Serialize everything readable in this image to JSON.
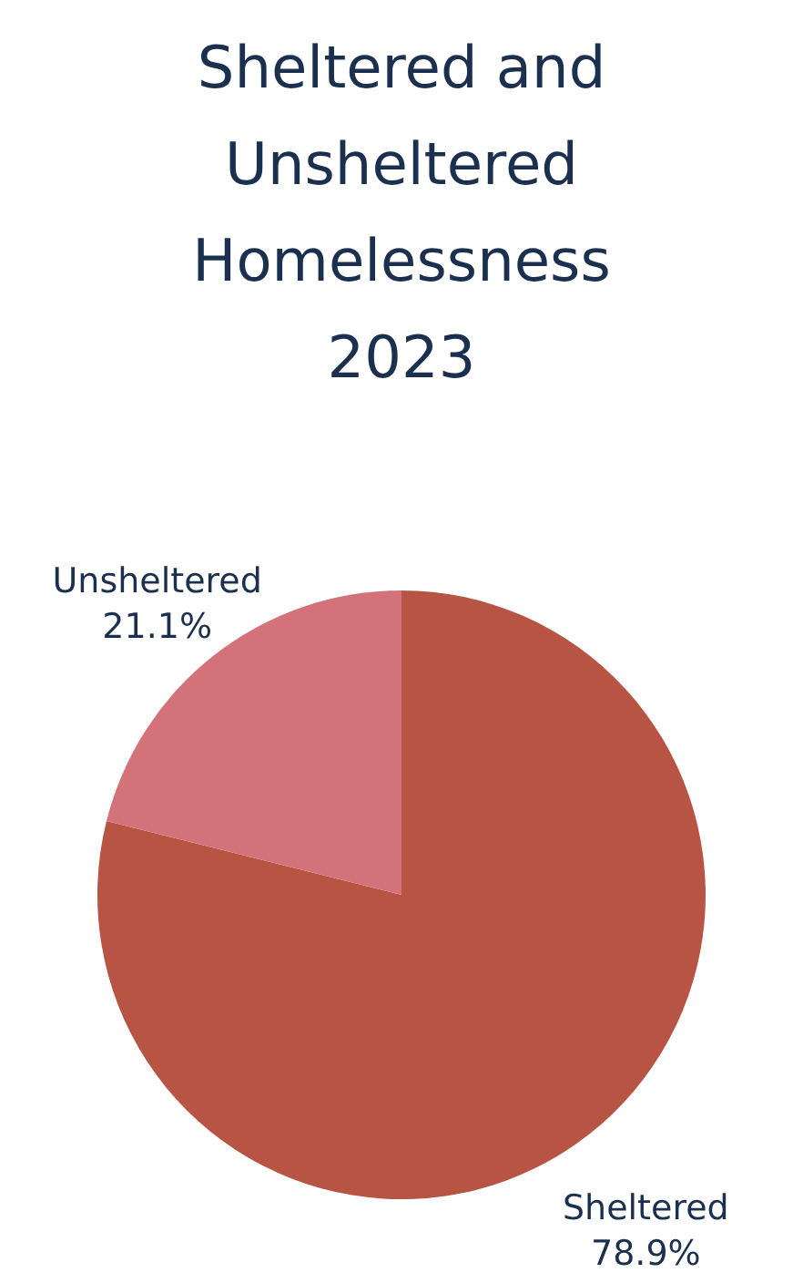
{
  "chart_data": {
    "type": "pie",
    "title": "Sheltered and Unsheltered Homelessness 2023",
    "categories": [
      "Sheltered",
      "Unsheltered"
    ],
    "values": [
      78.9,
      21.1
    ],
    "value_labels": [
      "78.9%",
      "21.1%"
    ],
    "colors": [
      "#b85444",
      "#d4727a"
    ]
  }
}
